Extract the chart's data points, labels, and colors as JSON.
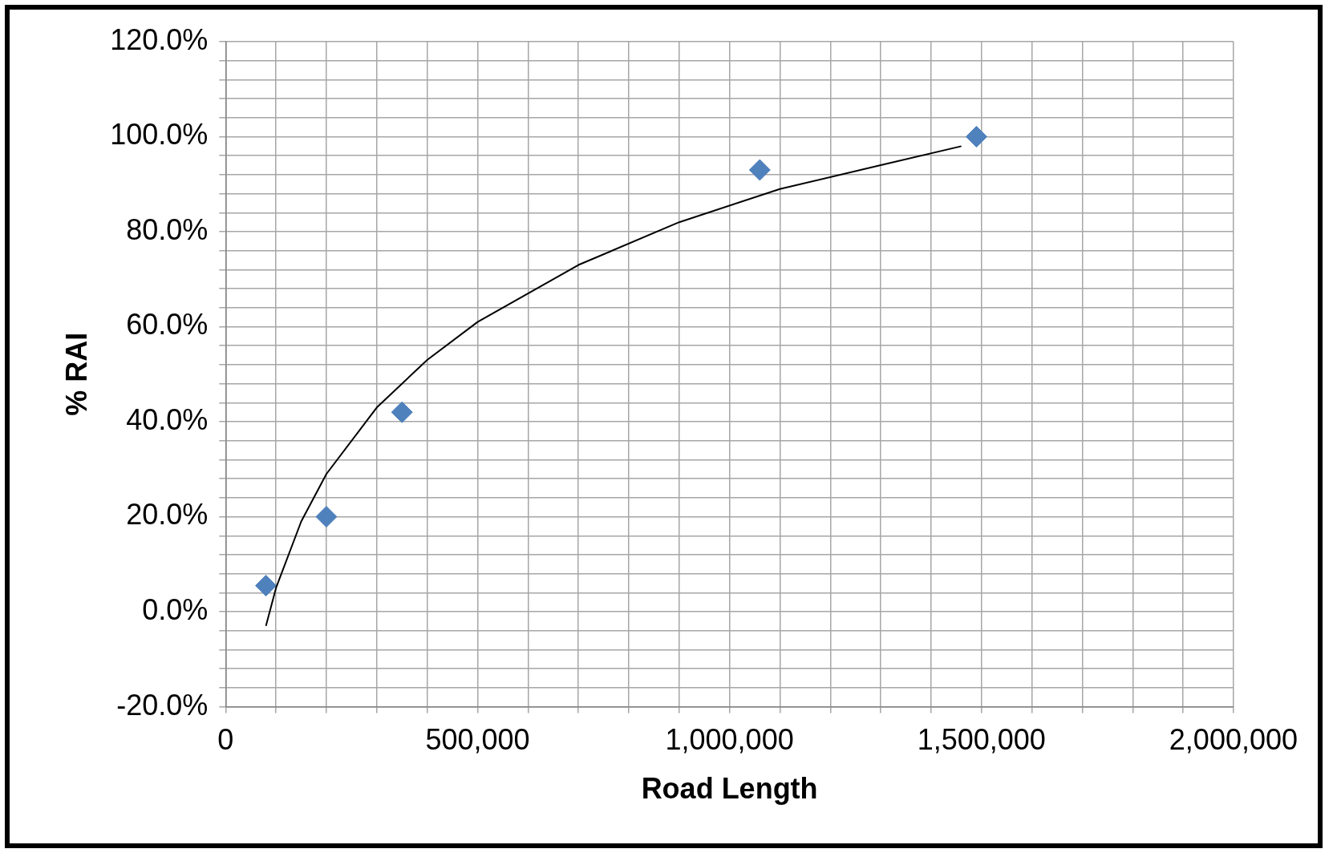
{
  "chart_data": {
    "type": "scatter",
    "xlabel": "Road Length",
    "ylabel": "% RAI",
    "grid": true,
    "legend": false,
    "marker": "diamond",
    "xlim": [
      0,
      2000000
    ],
    "ylim": [
      -20,
      120
    ],
    "xticks": [
      {
        "value": 0,
        "label": "0"
      },
      {
        "value": 100000,
        "label": null
      },
      {
        "value": 200000,
        "label": null
      },
      {
        "value": 300000,
        "label": null
      },
      {
        "value": 400000,
        "label": null
      },
      {
        "value": 500000,
        "label": "500,000"
      },
      {
        "value": 600000,
        "label": null
      },
      {
        "value": 700000,
        "label": null
      },
      {
        "value": 800000,
        "label": null
      },
      {
        "value": 900000,
        "label": null
      },
      {
        "value": 1000000,
        "label": "1,000,000"
      },
      {
        "value": 1100000,
        "label": null
      },
      {
        "value": 1200000,
        "label": null
      },
      {
        "value": 1300000,
        "label": null
      },
      {
        "value": 1400000,
        "label": null
      },
      {
        "value": 1500000,
        "label": "1,500,000"
      },
      {
        "value": 1600000,
        "label": null
      },
      {
        "value": 1700000,
        "label": null
      },
      {
        "value": 1800000,
        "label": null
      },
      {
        "value": 1900000,
        "label": null
      },
      {
        "value": 2000000,
        "label": "2,000,000"
      }
    ],
    "yticks": [
      {
        "value": -20,
        "label": "-20.0%"
      },
      {
        "value": -16,
        "label": null
      },
      {
        "value": -12,
        "label": null
      },
      {
        "value": -8,
        "label": null
      },
      {
        "value": -4,
        "label": null
      },
      {
        "value": 0,
        "label": "0.0%"
      },
      {
        "value": 4,
        "label": null
      },
      {
        "value": 8,
        "label": null
      },
      {
        "value": 12,
        "label": null
      },
      {
        "value": 16,
        "label": null
      },
      {
        "value": 20,
        "label": "20.0%"
      },
      {
        "value": 24,
        "label": null
      },
      {
        "value": 28,
        "label": null
      },
      {
        "value": 32,
        "label": null
      },
      {
        "value": 36,
        "label": null
      },
      {
        "value": 40,
        "label": "40.0%"
      },
      {
        "value": 44,
        "label": null
      },
      {
        "value": 48,
        "label": null
      },
      {
        "value": 52,
        "label": null
      },
      {
        "value": 56,
        "label": null
      },
      {
        "value": 60,
        "label": "60.0%"
      },
      {
        "value": 64,
        "label": null
      },
      {
        "value": 68,
        "label": null
      },
      {
        "value": 72,
        "label": null
      },
      {
        "value": 76,
        "label": null
      },
      {
        "value": 80,
        "label": "80.0%"
      },
      {
        "value": 84,
        "label": null
      },
      {
        "value": 88,
        "label": null
      },
      {
        "value": 92,
        "label": null
      },
      {
        "value": 96,
        "label": null
      },
      {
        "value": 100,
        "label": "100.0%"
      },
      {
        "value": 104,
        "label": null
      },
      {
        "value": 108,
        "label": null
      },
      {
        "value": 112,
        "label": null
      },
      {
        "value": 116,
        "label": null
      },
      {
        "value": 120,
        "label": "120.0%"
      }
    ],
    "series": [
      {
        "type": "scatter",
        "color": "#4f81bd",
        "x": [
          80000,
          200000,
          350000,
          1060000,
          1490000
        ],
        "values": [
          5.5,
          20,
          42,
          93,
          100
        ]
      },
      {
        "type": "line",
        "color": "#000000",
        "marker": "none",
        "x": [
          80000,
          100000,
          150000,
          200000,
          300000,
          400000,
          500000,
          700000,
          900000,
          1100000,
          1300000,
          1460000
        ],
        "values": [
          -3,
          5,
          19,
          29,
          43,
          53,
          61,
          73,
          82,
          89,
          94,
          98
        ]
      }
    ]
  }
}
